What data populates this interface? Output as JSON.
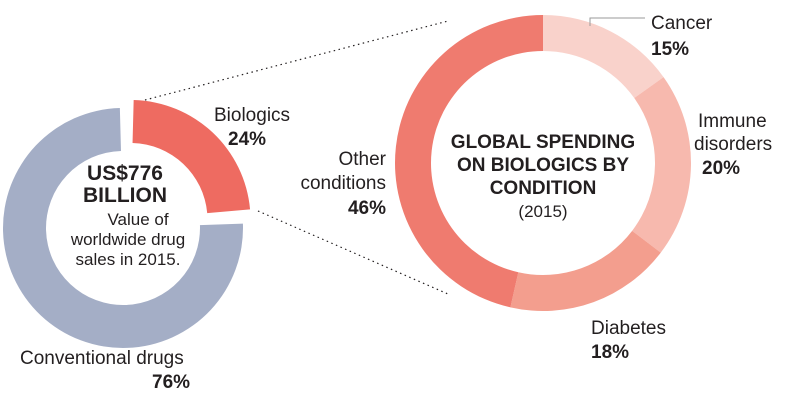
{
  "chart_data": [
    {
      "type": "pie",
      "variant": "donut",
      "center": {
        "amount": "US$776",
        "unit": "BILLION",
        "caption_lines": [
          "Value of",
          "worldwide drug",
          "sales in 2015."
        ]
      },
      "slices": [
        {
          "label": "Biologics",
          "value": 24,
          "value_label": "24%",
          "color": "#ee6b61",
          "exploded": true
        },
        {
          "label": "Conventional drugs",
          "value": 76,
          "value_label": "76%",
          "color": "#a4aec6"
        }
      ]
    },
    {
      "type": "pie",
      "variant": "donut",
      "center": {
        "title_lines": [
          "GLOBAL SPENDING",
          "ON BIOLOGICS BY",
          "CONDITION"
        ],
        "subtitle": "(2015)"
      },
      "slices": [
        {
          "label": "Cancer",
          "label_lines": [
            "Cancer"
          ],
          "value": 15,
          "value_label": "15%",
          "color": "#f9d2cb"
        },
        {
          "label": "Immune disorders",
          "label_lines": [
            "Immune",
            "disorders"
          ],
          "value": 20,
          "value_label": "20%",
          "color": "#f7b9ae"
        },
        {
          "label": "Diabetes",
          "label_lines": [
            "Diabetes"
          ],
          "value": 18,
          "value_label": "18%",
          "color": "#f39e8e"
        },
        {
          "label": "Other conditions",
          "label_lines": [
            "Other",
            "conditions"
          ],
          "value": 46,
          "value_label": "46%",
          "color": "#ef7b6f"
        }
      ]
    }
  ]
}
